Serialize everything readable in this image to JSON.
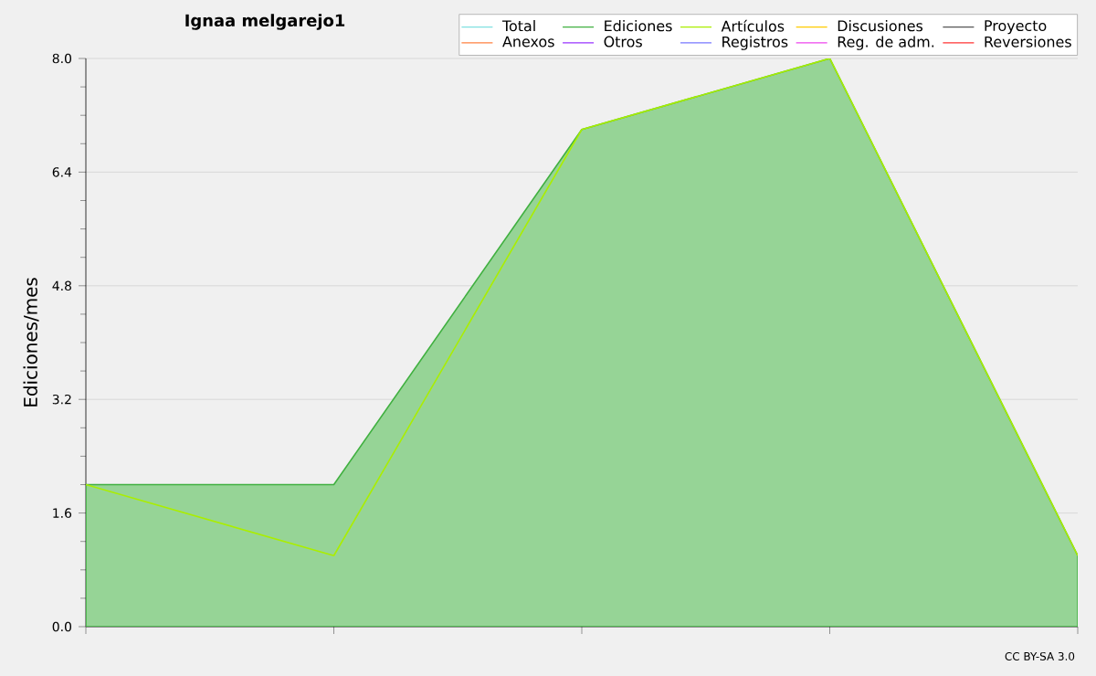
{
  "chart_data": {
    "type": "area",
    "title": "Ignaa melgarejo1",
    "ylabel": "Ediciones/mes",
    "categories": [
      null,
      null,
      null,
      null,
      null
    ],
    "series": [
      {
        "name": "Total",
        "color": "#80e0e0",
        "type": "line",
        "values": [
          null,
          null,
          null,
          null,
          null
        ]
      },
      {
        "name": "Ediciones",
        "color": "#40b040",
        "values": [
          2,
          2,
          7,
          8,
          1
        ]
      },
      {
        "name": "Artículos",
        "color": "#aaee00",
        "type": "line",
        "values": [
          2,
          1,
          7,
          8,
          1
        ]
      },
      {
        "name": "Discusiones",
        "color": "#ffcc00",
        "type": "line",
        "values": [
          null,
          null,
          null,
          null,
          null
        ]
      },
      {
        "name": "Proyecto",
        "color": "#555555",
        "type": "line",
        "values": [
          null,
          null,
          null,
          null,
          null
        ]
      },
      {
        "name": "Anexos",
        "color": "#ff8040",
        "type": "line",
        "values": [
          null,
          null,
          null,
          null,
          null
        ]
      },
      {
        "name": "Otros",
        "color": "#9933ff",
        "type": "line",
        "values": [
          null,
          null,
          null,
          null,
          null
        ]
      },
      {
        "name": "Registros",
        "color": "#7777ff",
        "type": "line",
        "values": [
          null,
          null,
          null,
          null,
          null
        ]
      },
      {
        "name": "Reg. de adm.",
        "color": "#ee44ee",
        "type": "line",
        "values": [
          null,
          null,
          null,
          null,
          null
        ]
      },
      {
        "name": "Reversiones",
        "color": "#ff3333",
        "type": "line",
        "values": [
          null,
          null,
          null,
          null,
          null
        ]
      }
    ],
    "ylim": [
      0,
      8
    ],
    "yticks": [
      {
        "value": 0,
        "label": "0.0"
      },
      {
        "value": 1.6,
        "label": "1.6"
      },
      {
        "value": 3.2,
        "label": "3.2"
      },
      {
        "value": 4.8,
        "label": "4.8"
      },
      {
        "value": 6.4,
        "label": "6.4"
      },
      {
        "value": 8,
        "label": "8.0"
      }
    ],
    "grid": "y",
    "legend": "top right",
    "tick_labels": "y",
    "annotations": [
      "CC BY-SA 3.0"
    ]
  }
}
